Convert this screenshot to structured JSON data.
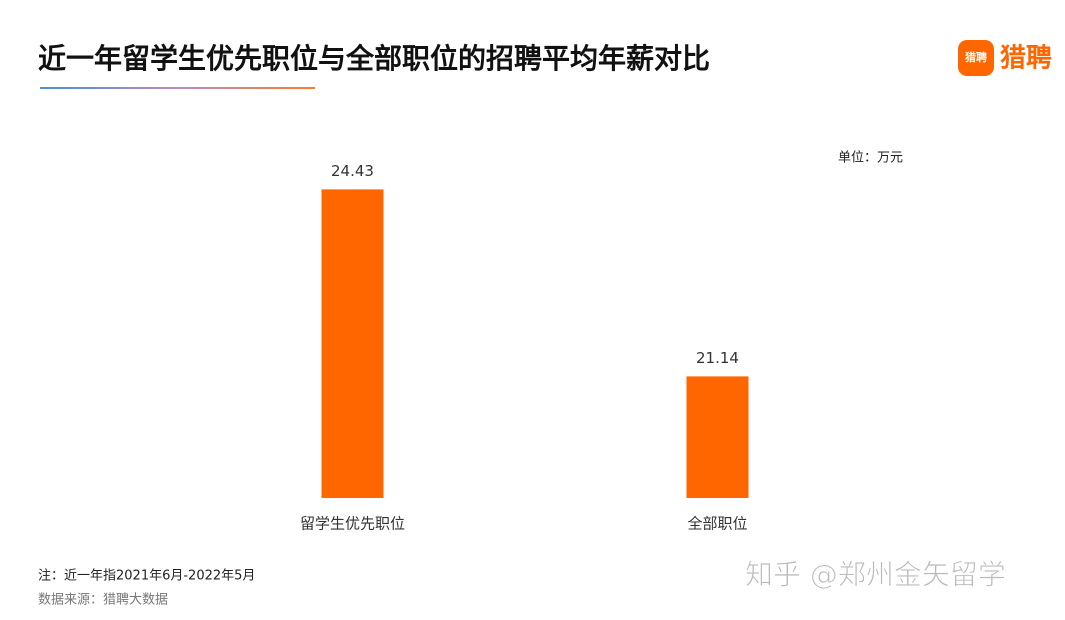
{
  "chart_data": {
    "type": "bar",
    "title": "近一年留学生优先职位与全部职位的招聘平均年薪对比",
    "unit": "单位：万元",
    "categories": [
      "留学生优先职位",
      "全部职位"
    ],
    "values": [
      24.43,
      21.14
    ],
    "color": "#ff6600",
    "ylim": [
      19,
      25
    ],
    "note": "注：近一年指2021年6月-2022年5月",
    "source": "数据来源：猎聘大数据",
    "logo_icon": "猎聘",
    "logo": "猎聘",
    "watermark": "知乎 @郑州金矢留学"
  }
}
